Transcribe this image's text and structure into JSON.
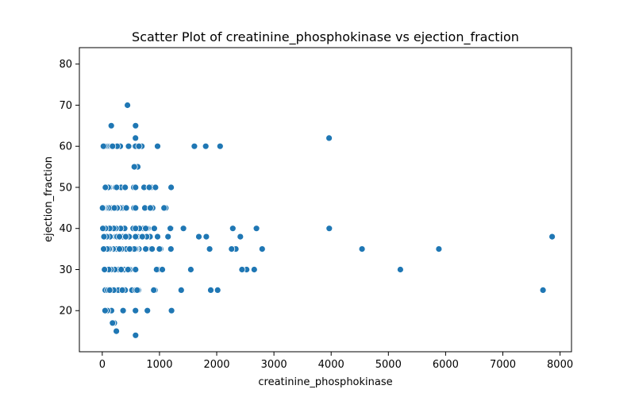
{
  "chart_data": {
    "type": "scatter",
    "title": "Scatter Plot of creatinine_phosphokinase vs ejection_fraction",
    "xlabel": "creatinine_phosphokinase",
    "ylabel": "ejection_fraction",
    "xlim": [
      -400,
      8200
    ],
    "ylim": [
      10,
      84
    ],
    "xticks": [
      0,
      1000,
      2000,
      3000,
      4000,
      5000,
      6000,
      7000,
      8000
    ],
    "yticks": [
      20,
      30,
      40,
      50,
      60,
      70,
      80
    ],
    "grid": false,
    "color": "#1f77b4",
    "points": [
      [
        582,
        20
      ],
      [
        7861,
        38
      ],
      [
        146,
        20
      ],
      [
        111,
        20
      ],
      [
        160,
        20
      ],
      [
        47,
        40
      ],
      [
        246,
        15
      ],
      [
        315,
        60
      ],
      [
        157,
        65
      ],
      [
        123,
        35
      ],
      [
        81,
        38
      ],
      [
        231,
        25
      ],
      [
        981,
        30
      ],
      [
        168,
        38
      ],
      [
        80,
        30
      ],
      [
        379,
        50
      ],
      [
        149,
        38
      ],
      [
        582,
        14
      ],
      [
        125,
        25
      ],
      [
        52,
        25
      ],
      [
        128,
        30
      ],
      [
        220,
        25
      ],
      [
        63,
        50
      ],
      [
        148,
        38
      ],
      [
        112,
        40
      ],
      [
        122,
        45
      ],
      [
        60,
        30
      ],
      [
        70,
        35
      ],
      [
        23,
        60
      ],
      [
        249,
        35
      ],
      [
        159,
        30
      ],
      [
        94,
        50
      ],
      [
        855,
        50
      ],
      [
        2656,
        30
      ],
      [
        235,
        38
      ],
      [
        124,
        30
      ],
      [
        571,
        45
      ],
      [
        127,
        50
      ],
      [
        588,
        60
      ],
      [
        1380,
        25
      ],
      [
        553,
        45
      ],
      [
        129,
        60
      ],
      [
        577,
        25
      ],
      [
        91,
        20
      ],
      [
        3964,
        62
      ],
      [
        69,
        40
      ],
      [
        260,
        38
      ],
      [
        371,
        30
      ],
      [
        75,
        35
      ],
      [
        607,
        40
      ],
      [
        789,
        20
      ],
      [
        364,
        20
      ],
      [
        7702,
        25
      ],
      [
        1204,
        50
      ],
      [
        582,
        55
      ],
      [
        1109,
        45
      ],
      [
        1896,
        25
      ],
      [
        966,
        60
      ],
      [
        291,
        35
      ],
      [
        755,
        40
      ],
      [
        2794,
        35
      ],
      [
        170,
        40
      ],
      [
        1211,
        20
      ],
      [
        235,
        30
      ],
      [
        582,
        65
      ],
      [
        94,
        45
      ],
      [
        1808,
        60
      ],
      [
        2060,
        60
      ],
      [
        2017,
        25
      ],
      [
        730,
        50
      ],
      [
        1610,
        60
      ],
      [
        1419,
        40
      ],
      [
        1876,
        35
      ],
      [
        1548,
        30
      ],
      [
        2522,
        30
      ],
      [
        1818,
        38
      ],
      [
        2695,
        40
      ],
      [
        2442,
        30
      ],
      [
        2413,
        38
      ],
      [
        2334,
        35
      ],
      [
        2281,
        40
      ],
      [
        2261,
        35
      ],
      [
        3966,
        40
      ],
      [
        4540,
        35
      ],
      [
        5209,
        30
      ],
      [
        5882,
        35
      ],
      [
        1688,
        38
      ],
      [
        1202,
        40
      ],
      [
        1021,
        35
      ],
      [
        1051,
        30
      ],
      [
        966,
        38
      ],
      [
        920,
        25
      ],
      [
        900,
        25
      ],
      [
        880,
        45
      ],
      [
        862,
        35
      ],
      [
        850,
        35
      ],
      [
        835,
        38
      ],
      [
        800,
        40
      ],
      [
        776,
        38
      ],
      [
        745,
        45
      ],
      [
        720,
        40
      ],
      [
        690,
        38
      ],
      [
        670,
        60
      ],
      [
        650,
        40
      ],
      [
        640,
        35
      ],
      [
        630,
        25
      ],
      [
        620,
        55
      ],
      [
        610,
        60
      ],
      [
        600,
        35
      ],
      [
        590,
        30
      ],
      [
        580,
        62
      ],
      [
        570,
        60
      ],
      [
        560,
        55
      ],
      [
        550,
        50
      ],
      [
        540,
        40
      ],
      [
        520,
        25
      ],
      [
        500,
        30
      ],
      [
        480,
        30
      ],
      [
        460,
        60
      ],
      [
        440,
        70
      ],
      [
        420,
        35
      ],
      [
        400,
        25
      ],
      [
        390,
        40
      ],
      [
        380,
        30
      ],
      [
        360,
        38
      ],
      [
        350,
        45
      ],
      [
        340,
        35
      ],
      [
        330,
        50
      ],
      [
        320,
        40
      ],
      [
        310,
        45
      ],
      [
        300,
        38
      ],
      [
        290,
        30
      ],
      [
        280,
        25
      ],
      [
        270,
        45
      ],
      [
        260,
        60
      ],
      [
        250,
        35
      ],
      [
        240,
        40
      ],
      [
        230,
        50
      ],
      [
        220,
        30
      ],
      [
        210,
        17
      ],
      [
        200,
        40
      ],
      [
        190,
        35
      ],
      [
        180,
        17
      ],
      [
        175,
        45
      ],
      [
        170,
        60
      ],
      [
        165,
        25
      ],
      [
        155,
        30
      ],
      [
        150,
        45
      ],
      [
        140,
        35
      ],
      [
        135,
        38
      ],
      [
        130,
        40
      ],
      [
        120,
        35
      ],
      [
        115,
        30
      ],
      [
        110,
        45
      ],
      [
        105,
        50
      ],
      [
        100,
        60
      ],
      [
        95,
        25
      ],
      [
        90,
        20
      ],
      [
        85,
        35
      ],
      [
        78,
        38
      ],
      [
        72,
        60
      ],
      [
        66,
        45
      ],
      [
        58,
        40
      ],
      [
        55,
        50
      ],
      [
        50,
        20
      ],
      [
        45,
        60
      ],
      [
        40,
        30
      ],
      [
        35,
        45
      ],
      [
        30,
        38
      ],
      [
        25,
        35
      ],
      [
        20,
        60
      ],
      [
        15,
        45
      ],
      [
        10,
        40
      ],
      [
        5,
        45
      ],
      [
        200,
        25
      ],
      [
        260,
        45
      ],
      [
        330,
        30
      ],
      [
        420,
        45
      ],
      [
        470,
        38
      ],
      [
        530,
        35
      ],
      [
        615,
        38
      ],
      [
        690,
        60
      ],
      [
        760,
        35
      ],
      [
        840,
        45
      ],
      [
        910,
        40
      ],
      [
        950,
        30
      ],
      [
        1000,
        35
      ],
      [
        1080,
        45
      ],
      [
        1150,
        38
      ],
      [
        1190,
        40
      ],
      [
        580,
        20
      ],
      [
        582,
        25
      ],
      [
        582,
        35
      ],
      [
        582,
        40
      ],
      [
        582,
        45
      ],
      [
        582,
        60
      ],
      [
        582,
        38
      ],
      [
        582,
        30
      ],
      [
        582,
        50
      ],
      [
        180,
        60
      ],
      [
        210,
        45
      ],
      [
        130,
        25
      ],
      [
        250,
        50
      ],
      [
        300,
        35
      ],
      [
        350,
        25
      ],
      [
        410,
        38
      ],
      [
        450,
        30
      ],
      [
        610,
        25
      ],
      [
        700,
        38
      ],
      [
        780,
        40
      ],
      [
        820,
        50
      ],
      [
        870,
        35
      ],
      [
        930,
        50
      ],
      [
        1200,
        35
      ],
      [
        1050,
        30
      ],
      [
        760,
        40
      ],
      [
        640,
        60
      ],
      [
        560,
        35
      ],
      [
        480,
        35
      ],
      [
        400,
        50
      ]
    ]
  }
}
